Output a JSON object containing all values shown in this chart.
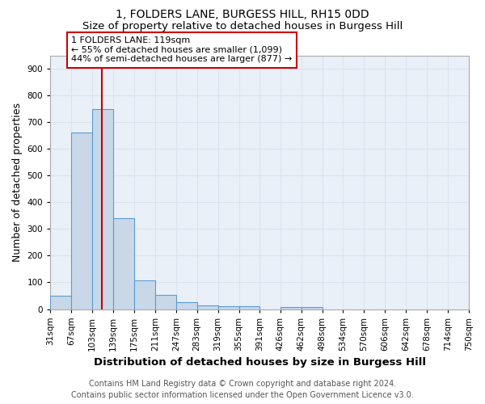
{
  "title": "1, FOLDERS LANE, BURGESS HILL, RH15 0DD",
  "subtitle": "Size of property relative to detached houses in Burgess Hill",
  "xlabel": "Distribution of detached houses by size in Burgess Hill",
  "ylabel": "Number of detached properties",
  "bin_edges": [
    31,
    67,
    103,
    139,
    175,
    211,
    247,
    283,
    319,
    355,
    391,
    426,
    462,
    498,
    534,
    570,
    606,
    642,
    678,
    714,
    750
  ],
  "bin_labels": [
    "31sqm",
    "67sqm",
    "103sqm",
    "139sqm",
    "175sqm",
    "211sqm",
    "247sqm",
    "283sqm",
    "319sqm",
    "355sqm",
    "391sqm",
    "426sqm",
    "462sqm",
    "498sqm",
    "534sqm",
    "570sqm",
    "606sqm",
    "642sqm",
    "678sqm",
    "714sqm",
    "750sqm"
  ],
  "bar_heights": [
    50,
    660,
    750,
    340,
    108,
    52,
    27,
    15,
    12,
    10,
    0,
    8,
    8,
    0,
    0,
    0,
    0,
    0,
    0,
    0
  ],
  "bar_color": "#c8d8e8",
  "bar_edgecolor": "#5b9bd5",
  "grid_color": "#d8e4f0",
  "bg_color": "#eaf0f8",
  "red_line_x": 119,
  "annotation_line1": "1 FOLDERS LANE: 119sqm",
  "annotation_line2": "← 55% of detached houses are smaller (1,099)",
  "annotation_line3": "44% of semi-detached houses are larger (877) →",
  "annotation_box_color": "#ffffff",
  "annotation_border_color": "#cc0000",
  "ylim": [
    0,
    950
  ],
  "yticks": [
    0,
    100,
    200,
    300,
    400,
    500,
    600,
    700,
    800,
    900
  ],
  "footer_line1": "Contains HM Land Registry data © Crown copyright and database right 2024.",
  "footer_line2": "Contains public sector information licensed under the Open Government Licence v3.0.",
  "title_fontsize": 10,
  "subtitle_fontsize": 9.5,
  "axis_label_fontsize": 9,
  "tick_fontsize": 7.5,
  "annotation_fontsize": 8,
  "footer_fontsize": 7
}
